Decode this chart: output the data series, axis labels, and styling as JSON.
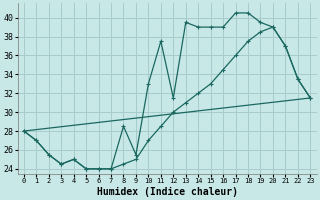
{
  "xlabel": "Humidex (Indice chaleur)",
  "bg_color": "#c8e8e8",
  "grid_color": "#a8cccc",
  "line_color": "#1a6860",
  "xlim": [
    -0.5,
    23.5
  ],
  "ylim": [
    23.5,
    41.5
  ],
  "yticks": [
    24,
    26,
    28,
    30,
    32,
    34,
    36,
    38,
    40
  ],
  "xticks": [
    0,
    1,
    2,
    3,
    4,
    5,
    6,
    7,
    8,
    9,
    10,
    11,
    12,
    13,
    14,
    15,
    16,
    17,
    18,
    19,
    20,
    21,
    22,
    23
  ],
  "series1_x": [
    0,
    1,
    2,
    3,
    4,
    5,
    6,
    7,
    8,
    9,
    10,
    11,
    12,
    13,
    14,
    15,
    16,
    17,
    18,
    19,
    20,
    21,
    22,
    23
  ],
  "series1_y": [
    28,
    27,
    25.5,
    24.5,
    25,
    24,
    24,
    24,
    28.5,
    25.5,
    33,
    37.5,
    31.5,
    39.5,
    39,
    39,
    39,
    40.5,
    40.5,
    39.5,
    39,
    37,
    33.5,
    31.5
  ],
  "series2_x": [
    0,
    1,
    2,
    3,
    4,
    5,
    6,
    7,
    8,
    9,
    10,
    11,
    12,
    13,
    14,
    15,
    16,
    17,
    18,
    19,
    20,
    21,
    22,
    23
  ],
  "series2_y": [
    28,
    27,
    25.5,
    24.5,
    25,
    24,
    24,
    24,
    24.5,
    25,
    27,
    28.5,
    30,
    31,
    32,
    33,
    34.5,
    36,
    37.5,
    38.5,
    39,
    37,
    33.5,
    31.5
  ],
  "series3_x": [
    0,
    23
  ],
  "series3_y": [
    28,
    31.5
  ]
}
